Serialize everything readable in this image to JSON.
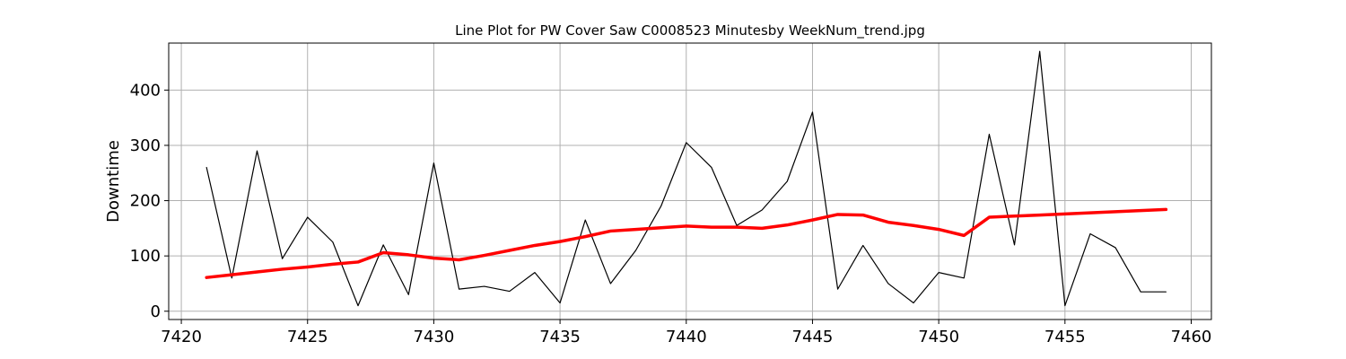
{
  "chart_data": {
    "type": "line",
    "title": "Line Plot for PW Cover Saw C0008523 Minutesby WeekNum_trend.jpg",
    "xlabel": "",
    "ylabel": "Downtime",
    "xlim": [
      7419.5,
      7460.8
    ],
    "ylim": [
      -15,
      485
    ],
    "xticks": [
      7420,
      7425,
      7430,
      7435,
      7440,
      7445,
      7450,
      7455,
      7460
    ],
    "yticks": [
      0,
      100,
      200,
      300,
      400
    ],
    "grid": true,
    "x": [
      7421,
      7422,
      7423,
      7424,
      7425,
      7426,
      7427,
      7428,
      7429,
      7430,
      7431,
      7432,
      7433,
      7434,
      7435,
      7436,
      7437,
      7438,
      7439,
      7440,
      7441,
      7442,
      7443,
      7444,
      7445,
      7446,
      7447,
      7448,
      7449,
      7450,
      7451,
      7452,
      7453,
      7454,
      7455,
      7456,
      7457,
      7458,
      7459
    ],
    "series": [
      {
        "color": "#000000",
        "line_width": 1.2,
        "values": [
          260,
          60,
          290,
          95,
          170,
          125,
          10,
          120,
          30,
          268,
          40,
          45,
          36,
          70,
          15,
          165,
          50,
          110,
          190,
          305,
          260,
          155,
          183,
          235,
          360,
          40,
          119,
          50,
          15,
          70,
          60,
          320,
          120,
          470,
          10,
          140,
          115,
          35,
          35
        ]
      },
      {
        "color": "#ff0000",
        "line_width": 3.5,
        "values": [
          61,
          66,
          71,
          76,
          80,
          85,
          89,
          106,
          102,
          96,
          93,
          101,
          110,
          119,
          126,
          135,
          145,
          148,
          151,
          154,
          152,
          152,
          150,
          156,
          165,
          175,
          174,
          161,
          155,
          148,
          137,
          170,
          172,
          174,
          176,
          178,
          180,
          182,
          184
        ]
      }
    ]
  }
}
